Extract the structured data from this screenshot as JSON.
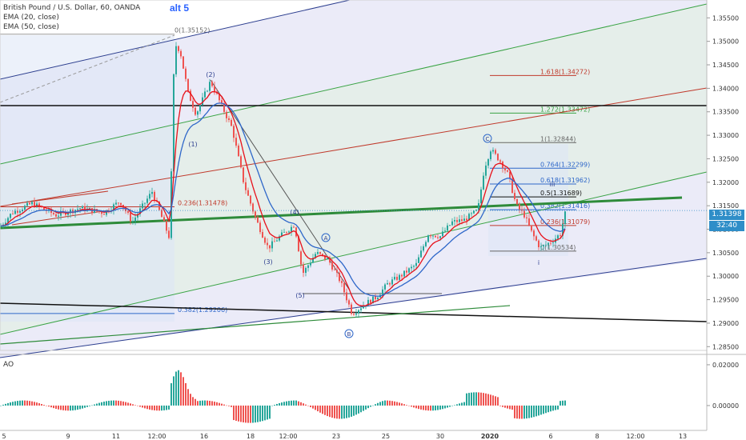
{
  "chart_data": {
    "type": "candlestick",
    "symbol_title": "British Pound / U.S. Dollar, 60, OANDA",
    "indicators": [
      "EMA (20, close)",
      "EMA (50, close)"
    ],
    "label_top": "alt 5",
    "y_ticks": [
      "1.35500",
      "1.35000",
      "1.34500",
      "1.34000",
      "1.33500",
      "1.33000",
      "1.32500",
      "1.32000",
      "1.31500",
      "1.31000",
      "1.30500",
      "1.30000",
      "1.29500",
      "1.29000",
      "1.28500"
    ],
    "y_tick_values": [
      1.355,
      1.35,
      1.345,
      1.34,
      1.335,
      1.33,
      1.325,
      1.32,
      1.315,
      1.31,
      1.305,
      1.3,
      1.295,
      1.29,
      1.285
    ],
    "ylim": [
      1.2842,
      1.3588
    ],
    "x_ticks": [
      "5",
      "9",
      "11",
      "12:00",
      "16",
      "18",
      "12:00",
      "23",
      "25",
      "30",
      "2020",
      "6",
      "8",
      "12:00",
      "13"
    ],
    "last_price": "1.31398",
    "countdown": "32:40",
    "ao_label": "AO",
    "ao_ticks": [
      "0.02000",
      "0.00000"
    ],
    "ao_tick_values": [
      0.02,
      0.0
    ],
    "ao_ylim": [
      -0.011,
      0.0235
    ],
    "fib_labels": [
      {
        "text": "0(1.35152)",
        "value": 1.35152
      },
      {
        "text": "0.236(1.31478)",
        "value": 1.31478
      },
      {
        "text": "0.382(1.29206)",
        "value": 1.29206
      },
      {
        "text": "1.618(1.34272)",
        "value": 1.34272
      },
      {
        "text": "1.272(1.33472)",
        "value": 1.33472
      },
      {
        "text": "1(1.32844)",
        "value": 1.32844
      },
      {
        "text": "0.764(1.32299)",
        "value": 1.32299
      },
      {
        "text": "0.618(1.31962)",
        "value": 1.31962
      },
      {
        "text": "0.5(1.31689)",
        "value": 1.31689
      },
      {
        "text": "0.382(1.31416)",
        "value": 1.31416
      },
      {
        "text": "0.236(1.31079)",
        "value": 1.31079
      },
      {
        "text": "0(1.30534)",
        "value": 1.30534
      }
    ],
    "wave_labels": [
      "(2)",
      "(1)",
      "(4)",
      "(3)",
      "(5)",
      "A",
      "B",
      "C",
      "iii",
      "i"
    ],
    "colors": {
      "up": "#26a69a",
      "down": "#ef5350",
      "ema20": "#e8101a",
      "ema50": "#2e67c9",
      "green_line": "#2e8b3a",
      "price_tag": "#2f8ec8"
    }
  }
}
